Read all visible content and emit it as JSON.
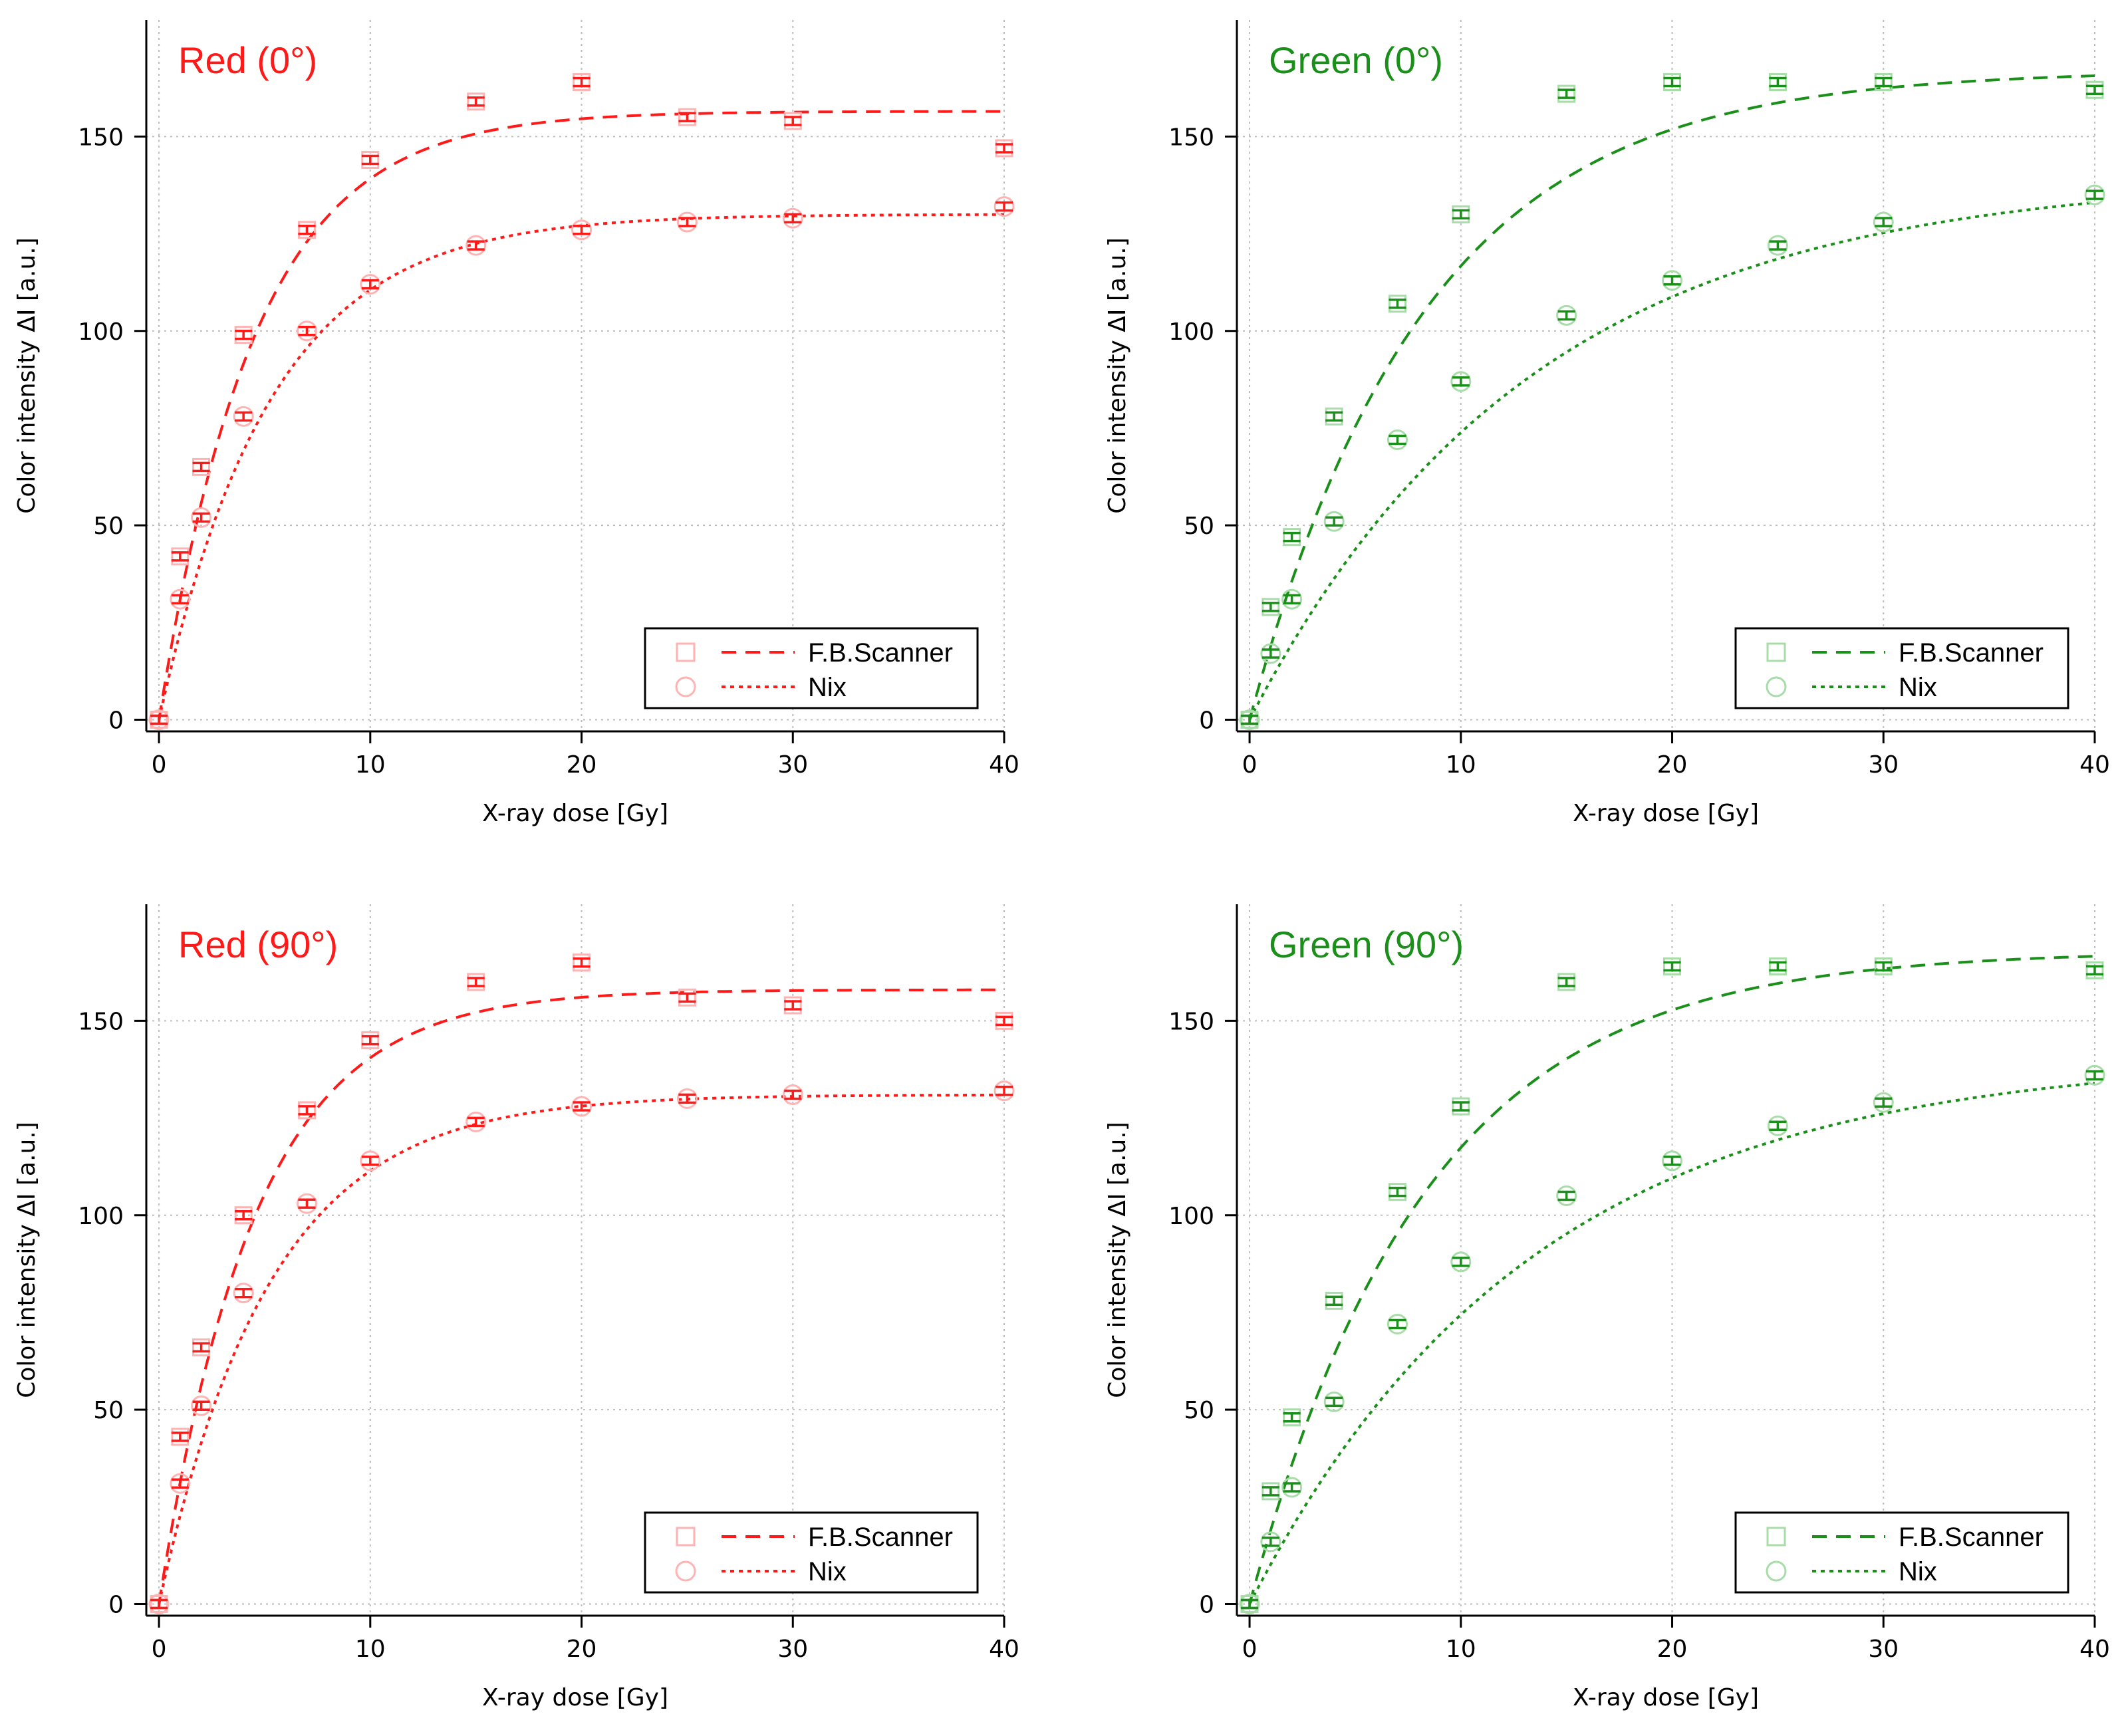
{
  "chart_data": [
    {
      "type": "scatter",
      "title": "Red (0°)",
      "color": "#ff1a1a",
      "marker_color": "#ffb3b3",
      "xlabel": "X-ray dose [Gy]",
      "ylabel": "Color intensity  ΔI  [a.u.]",
      "xlim": [
        -0.6,
        40
      ],
      "ylim": [
        -3,
        180
      ],
      "xticks": [
        0,
        10,
        20,
        30,
        40
      ],
      "yticks": [
        0,
        50,
        100,
        150
      ],
      "grid": true,
      "legend_position": "bottom-right",
      "series": [
        {
          "name": "F.B.Scanner",
          "marker": "square",
          "fit_style": "dashed",
          "x": [
            0,
            1,
            2,
            4,
            7,
            10,
            15,
            20,
            25,
            30,
            40
          ],
          "y": [
            0,
            42,
            65,
            99,
            126,
            144,
            159,
            164,
            155,
            154,
            147
          ],
          "fit": {
            "a": 156.5,
            "k": 0.22
          }
        },
        {
          "name": "Nix",
          "marker": "circle",
          "fit_style": "dotted",
          "x": [
            0,
            1,
            2,
            4,
            7,
            10,
            15,
            20,
            25,
            30,
            40
          ],
          "y": [
            0,
            31,
            52,
            78,
            100,
            112,
            122,
            126,
            128,
            129,
            132
          ],
          "fit": {
            "a": 130,
            "k": 0.19
          }
        }
      ]
    },
    {
      "type": "scatter",
      "title": "Green (0°)",
      "color": "#1a8f1a",
      "marker_color": "#a8dca8",
      "xlabel": "X-ray dose [Gy]",
      "ylabel": "Color intensity  ΔI  [a.u.]",
      "xlim": [
        -0.6,
        40
      ],
      "ylim": [
        -3,
        180
      ],
      "xticks": [
        0,
        10,
        20,
        30,
        40
      ],
      "yticks": [
        0,
        50,
        100,
        150
      ],
      "grid": true,
      "legend_position": "bottom-right",
      "series": [
        {
          "name": "F.B.Scanner",
          "marker": "square",
          "fit_style": "dashed",
          "x": [
            0,
            1,
            2,
            4,
            7,
            10,
            15,
            20,
            25,
            30,
            40
          ],
          "y": [
            0,
            29,
            47,
            78,
            107,
            130,
            161,
            164,
            164,
            164,
            162
          ],
          "fit": {
            "a": 167,
            "k": 0.12
          }
        },
        {
          "name": "Nix",
          "marker": "circle",
          "fit_style": "dotted",
          "x": [
            0,
            1,
            2,
            4,
            7,
            10,
            15,
            20,
            25,
            30,
            40
          ],
          "y": [
            0,
            17,
            31,
            51,
            72,
            87,
            104,
            113,
            122,
            128,
            135
          ],
          "fit": {
            "a": 140,
            "k": 0.075
          }
        }
      ]
    },
    {
      "type": "scatter",
      "title": "Red (90°)",
      "color": "#ff1a1a",
      "marker_color": "#ffb3b3",
      "xlabel": "X-ray dose [Gy]",
      "ylabel": "Color intensity  ΔI  [a.u.]",
      "xlim": [
        -0.6,
        40
      ],
      "ylim": [
        -3,
        180
      ],
      "xticks": [
        0,
        10,
        20,
        30,
        40
      ],
      "yticks": [
        0,
        50,
        100,
        150
      ],
      "grid": true,
      "legend_position": "bottom-right",
      "series": [
        {
          "name": "F.B.Scanner",
          "marker": "square",
          "fit_style": "dashed",
          "x": [
            0,
            1,
            2,
            4,
            7,
            10,
            15,
            20,
            25,
            30,
            40
          ],
          "y": [
            0,
            43,
            66,
            100,
            127,
            145,
            160,
            165,
            156,
            154,
            150
          ],
          "fit": {
            "a": 158,
            "k": 0.22
          }
        },
        {
          "name": "Nix",
          "marker": "circle",
          "fit_style": "dotted",
          "x": [
            0,
            1,
            2,
            4,
            7,
            10,
            15,
            20,
            25,
            30,
            40
          ],
          "y": [
            0,
            31,
            51,
            80,
            103,
            114,
            124,
            128,
            130,
            131,
            132
          ],
          "fit": {
            "a": 131,
            "k": 0.19
          }
        }
      ]
    },
    {
      "type": "scatter",
      "title": "Green (90°)",
      "color": "#1a8f1a",
      "marker_color": "#a8dca8",
      "xlabel": "X-ray dose [Gy]",
      "ylabel": "Color intensity  ΔI  [a.u.]",
      "xlim": [
        -0.6,
        40
      ],
      "ylim": [
        -3,
        180
      ],
      "xticks": [
        0,
        10,
        20,
        30,
        40
      ],
      "yticks": [
        0,
        50,
        100,
        150
      ],
      "grid": true,
      "legend_position": "bottom-right",
      "series": [
        {
          "name": "F.B.Scanner",
          "marker": "square",
          "fit_style": "dashed",
          "x": [
            0,
            1,
            2,
            4,
            7,
            10,
            15,
            20,
            25,
            30,
            40
          ],
          "y": [
            0,
            29,
            48,
            78,
            106,
            128,
            160,
            164,
            164,
            164,
            163
          ],
          "fit": {
            "a": 168,
            "k": 0.12
          }
        },
        {
          "name": "Nix",
          "marker": "circle",
          "fit_style": "dotted",
          "x": [
            0,
            1,
            2,
            4,
            7,
            10,
            15,
            20,
            25,
            30,
            40
          ],
          "y": [
            0,
            16,
            30,
            52,
            72,
            88,
            105,
            114,
            123,
            129,
            136
          ],
          "fit": {
            "a": 141,
            "k": 0.075
          }
        }
      ]
    }
  ]
}
